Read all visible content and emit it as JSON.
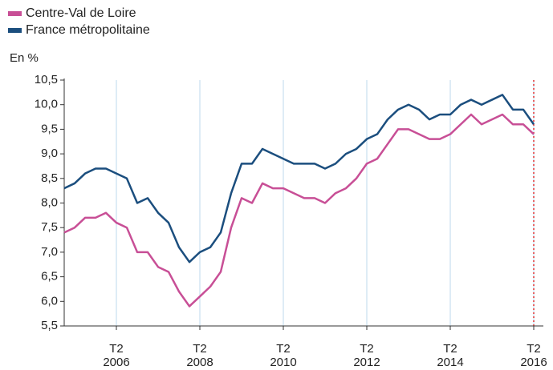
{
  "chart_data": {
    "type": "line",
    "y_label": "En %",
    "categories": [
      null,
      null,
      null,
      null,
      null,
      "T2 2006",
      null,
      null,
      null,
      null,
      null,
      null,
      null,
      "T2 2008",
      null,
      null,
      null,
      null,
      null,
      null,
      null,
      "T2 2010",
      null,
      null,
      null,
      null,
      null,
      null,
      null,
      "T2 2012",
      null,
      null,
      null,
      null,
      null,
      null,
      null,
      "T2 2014",
      null,
      null,
      null,
      null,
      null,
      null,
      null,
      "T2 2016"
    ],
    "series": [
      {
        "name": "Centre-Val de Loire",
        "color": "#c84f96",
        "values": [
          7.4,
          7.5,
          7.7,
          7.7,
          7.8,
          7.6,
          7.5,
          7.0,
          7.0,
          6.7,
          6.6,
          6.2,
          5.9,
          6.1,
          6.3,
          6.6,
          7.5,
          8.1,
          8.0,
          8.4,
          8.3,
          8.3,
          8.2,
          8.1,
          8.1,
          8.0,
          8.2,
          8.3,
          8.5,
          8.8,
          8.9,
          9.2,
          9.5,
          9.5,
          9.4,
          9.3,
          9.3,
          9.4,
          9.6,
          9.8,
          9.6,
          9.7,
          9.8,
          9.6,
          9.6,
          9.4
        ]
      },
      {
        "name": "France métropolitaine",
        "color": "#1b4e7e",
        "values": [
          8.3,
          8.4,
          8.6,
          8.7,
          8.7,
          8.6,
          8.5,
          8.0,
          8.1,
          7.8,
          7.6,
          7.1,
          6.8,
          7.0,
          7.1,
          7.4,
          8.2,
          8.8,
          8.8,
          9.1,
          9.0,
          8.9,
          8.8,
          8.8,
          8.8,
          8.7,
          8.8,
          9.0,
          9.1,
          9.3,
          9.4,
          9.7,
          9.9,
          10.0,
          9.9,
          9.7,
          9.8,
          9.8,
          10.0,
          10.1,
          10.0,
          10.1,
          10.2,
          9.9,
          9.9,
          9.6
        ]
      }
    ],
    "ylim": [
      5.5,
      10.5
    ],
    "yticks": [
      {
        "value": 5.5,
        "label": "5,5"
      },
      {
        "value": 6,
        "label": "6,0"
      },
      {
        "value": 6.5,
        "label": "6,5"
      },
      {
        "value": 7,
        "label": "7,0"
      },
      {
        "value": 7.5,
        "label": "7,5"
      },
      {
        "value": 8,
        "label": "8,0"
      },
      {
        "value": 8.5,
        "label": "8,5"
      },
      {
        "value": 9,
        "label": "9,0"
      },
      {
        "value": 9.5,
        "label": "9,5"
      },
      {
        "value": 10,
        "label": "10,0"
      },
      {
        "value": 10.5,
        "label": "10,5"
      }
    ],
    "grid": true,
    "legend": "top-left"
  }
}
